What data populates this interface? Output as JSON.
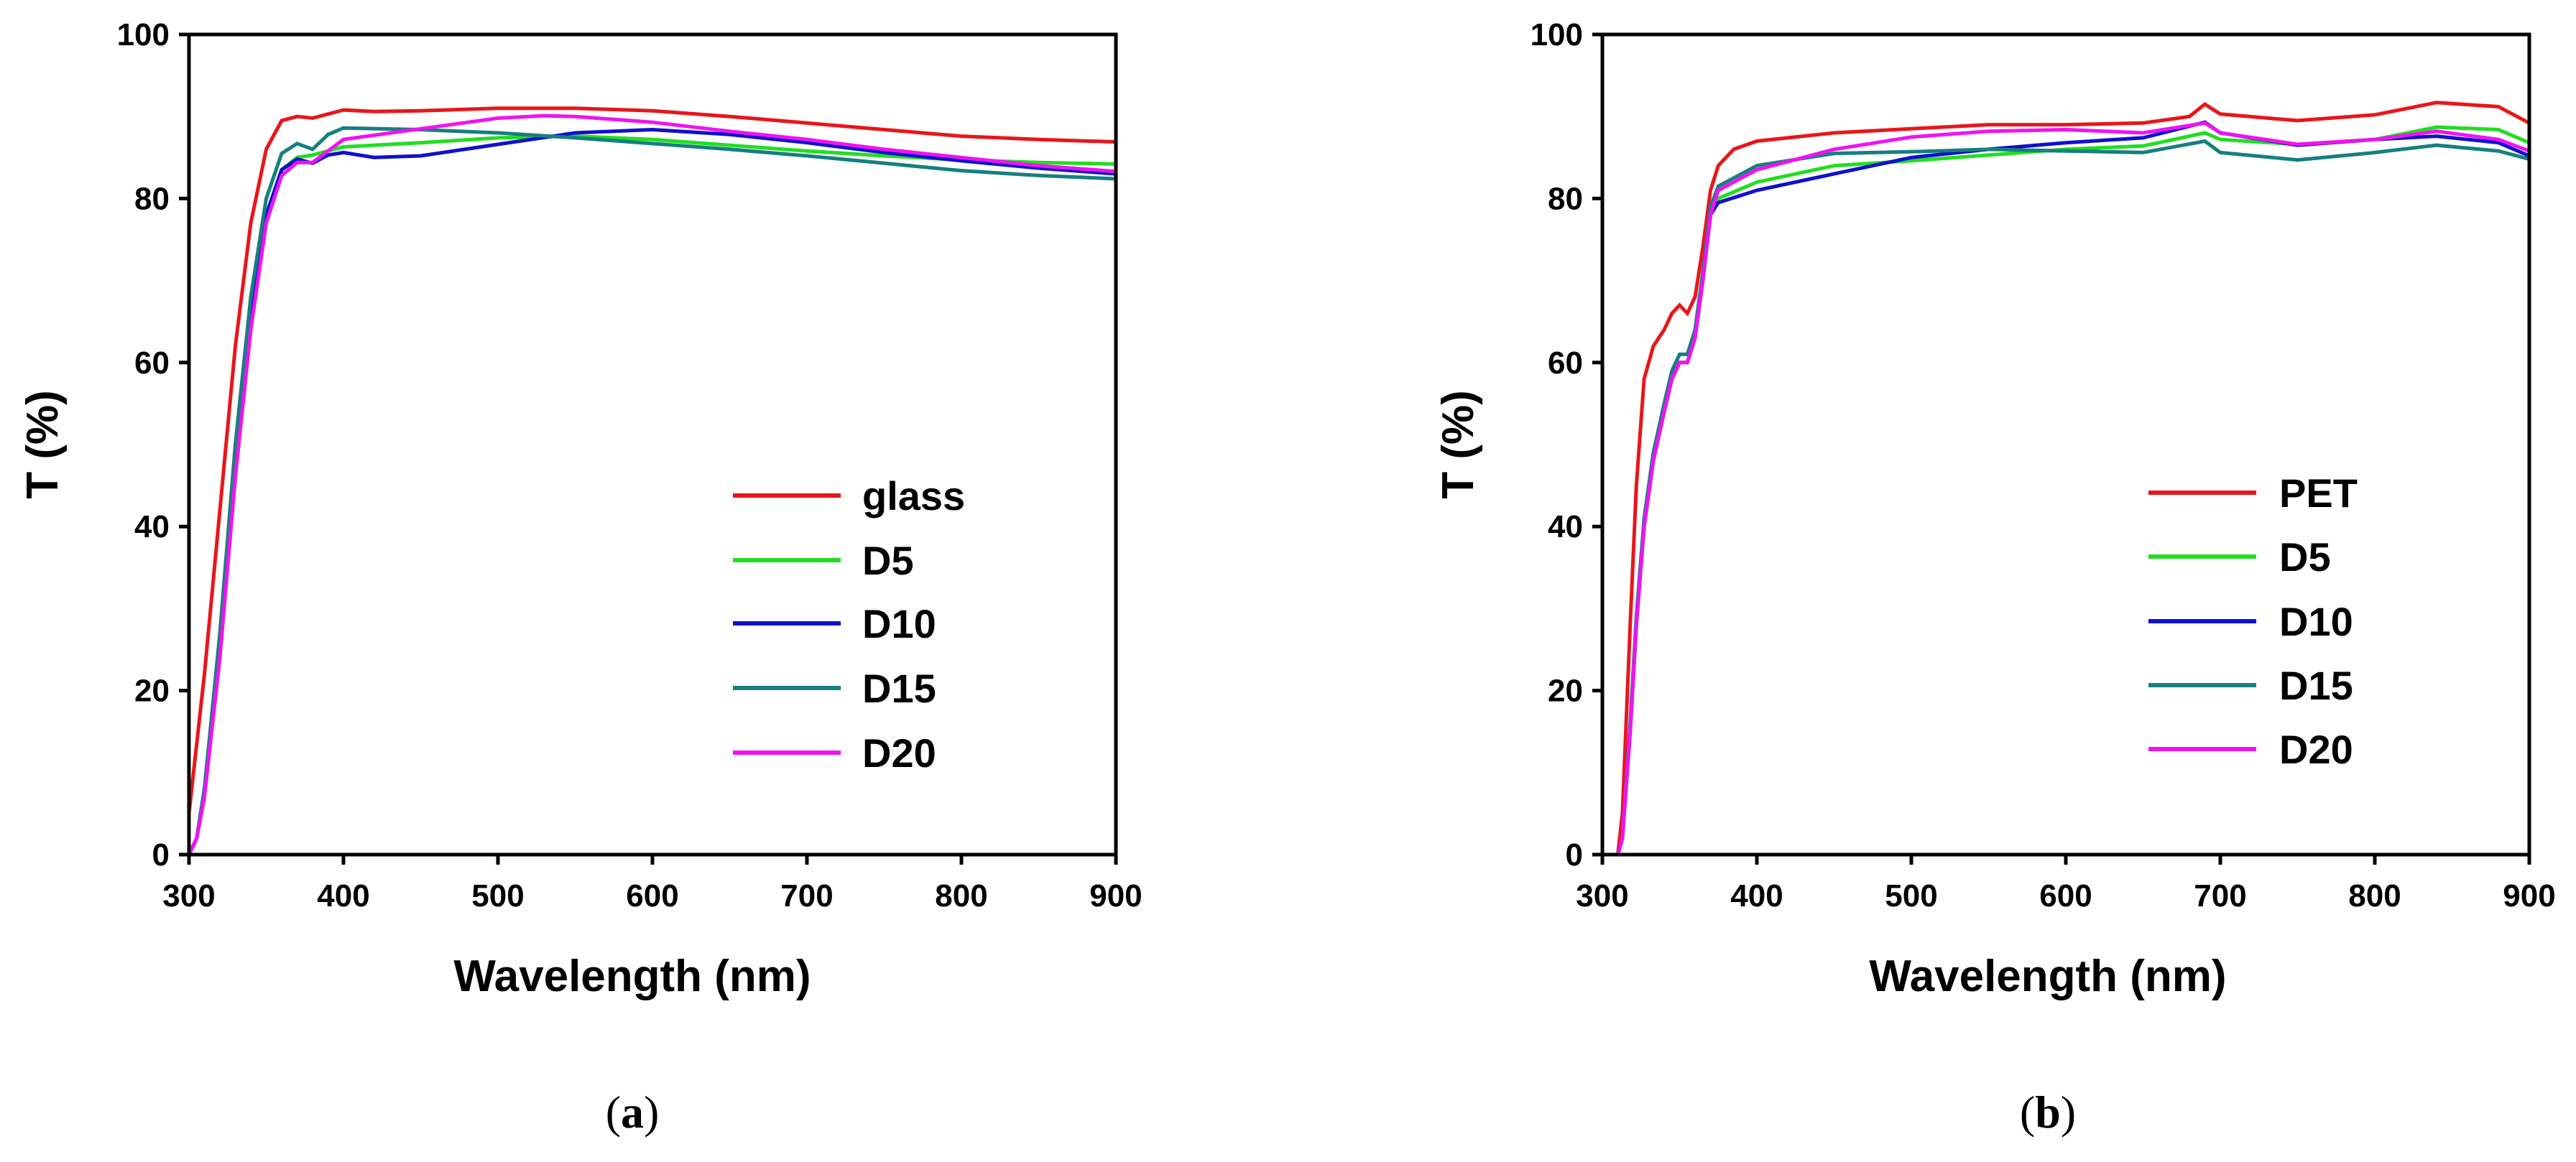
{
  "chart_data": [
    {
      "type": "line",
      "panel_label": "a",
      "xlabel": "Wavelength (nm)",
      "ylabel": "T (%)",
      "xlim": [
        300,
        900
      ],
      "ylim": [
        0,
        100
      ],
      "x_ticks": [
        300,
        400,
        500,
        600,
        700,
        800,
        900
      ],
      "y_ticks": [
        0,
        20,
        40,
        60,
        80,
        100
      ],
      "legend_position": "lower-right",
      "series": [
        {
          "name": "glass",
          "color": "#e8161b",
          "points": [
            [
              300,
              5
            ],
            [
              310,
              22
            ],
            [
              320,
              42
            ],
            [
              330,
              62
            ],
            [
              340,
              77
            ],
            [
              350,
              86
            ],
            [
              360,
              89.5
            ],
            [
              370,
              90
            ],
            [
              380,
              89.8
            ],
            [
              390,
              90.3
            ],
            [
              400,
              90.8
            ],
            [
              420,
              90.6
            ],
            [
              450,
              90.7
            ],
            [
              500,
              91
            ],
            [
              550,
              91
            ],
            [
              600,
              90.7
            ],
            [
              650,
              90
            ],
            [
              700,
              89.2
            ],
            [
              750,
              88.4
            ],
            [
              800,
              87.6
            ],
            [
              850,
              87.2
            ],
            [
              900,
              86.9
            ]
          ]
        },
        {
          "name": "D5",
          "color": "#22dd22",
          "points": [
            [
              300,
              0
            ],
            [
              305,
              2
            ],
            [
              310,
              8
            ],
            [
              320,
              26
            ],
            [
              330,
              48
            ],
            [
              340,
              66
            ],
            [
              350,
              78
            ],
            [
              360,
              83.5
            ],
            [
              370,
              85
            ],
            [
              380,
              85.3
            ],
            [
              390,
              85.8
            ],
            [
              400,
              86.3
            ],
            [
              450,
              86.8
            ],
            [
              500,
              87.4
            ],
            [
              550,
              87.6
            ],
            [
              600,
              87.2
            ],
            [
              650,
              86.5
            ],
            [
              700,
              85.8
            ],
            [
              750,
              85.2
            ],
            [
              800,
              84.7
            ],
            [
              850,
              84.4
            ],
            [
              900,
              84.2
            ]
          ]
        },
        {
          "name": "D10",
          "color": "#1010cc",
          "points": [
            [
              300,
              0
            ],
            [
              305,
              2
            ],
            [
              310,
              8
            ],
            [
              320,
              26
            ],
            [
              330,
              48
            ],
            [
              340,
              66
            ],
            [
              350,
              78
            ],
            [
              360,
              83.5
            ],
            [
              370,
              84.8
            ],
            [
              380,
              84.3
            ],
            [
              390,
              85.3
            ],
            [
              400,
              85.6
            ],
            [
              420,
              85
            ],
            [
              450,
              85.2
            ],
            [
              500,
              86.6
            ],
            [
              550,
              88
            ],
            [
              600,
              88.4
            ],
            [
              650,
              87.8
            ],
            [
              700,
              86.8
            ],
            [
              750,
              85.6
            ],
            [
              800,
              84.6
            ],
            [
              850,
              83.7
            ],
            [
              900,
              83
            ]
          ]
        },
        {
          "name": "D15",
          "color": "#167f7f",
          "points": [
            [
              300,
              0
            ],
            [
              305,
              2
            ],
            [
              310,
              8
            ],
            [
              320,
              27
            ],
            [
              330,
              50
            ],
            [
              340,
              68
            ],
            [
              350,
              80
            ],
            [
              360,
              85.5
            ],
            [
              370,
              86.7
            ],
            [
              380,
              86
            ],
            [
              390,
              87.8
            ],
            [
              400,
              88.6
            ],
            [
              450,
              88.4
            ],
            [
              500,
              88
            ],
            [
              550,
              87.4
            ],
            [
              600,
              86.7
            ],
            [
              650,
              86
            ],
            [
              700,
              85.2
            ],
            [
              750,
              84.3
            ],
            [
              800,
              83.4
            ],
            [
              850,
              82.8
            ],
            [
              900,
              82.4
            ]
          ]
        },
        {
          "name": "D20",
          "color": "#f013f0",
          "points": [
            [
              300,
              0
            ],
            [
              305,
              2
            ],
            [
              310,
              7
            ],
            [
              320,
              24
            ],
            [
              330,
              46
            ],
            [
              340,
              64
            ],
            [
              350,
              77
            ],
            [
              360,
              82.8
            ],
            [
              370,
              84.4
            ],
            [
              380,
              84.4
            ],
            [
              390,
              85.8
            ],
            [
              400,
              87.2
            ],
            [
              450,
              88.5
            ],
            [
              500,
              89.8
            ],
            [
              530,
              90.1
            ],
            [
              550,
              90
            ],
            [
              600,
              89.3
            ],
            [
              650,
              88.2
            ],
            [
              700,
              87.2
            ],
            [
              750,
              86
            ],
            [
              800,
              85
            ],
            [
              850,
              84
            ],
            [
              900,
              83.3
            ]
          ]
        }
      ]
    },
    {
      "type": "line",
      "panel_label": "b",
      "xlabel": "Wavelength (nm)",
      "ylabel": "T (%)",
      "xlim": [
        300,
        900
      ],
      "ylim": [
        0,
        100
      ],
      "x_ticks": [
        300,
        400,
        500,
        600,
        700,
        800,
        900
      ],
      "y_ticks": [
        0,
        20,
        40,
        60,
        80,
        100
      ],
      "legend_position": "lower-right",
      "series": [
        {
          "name": "PET",
          "color": "#e8161b",
          "points": [
            [
              310,
              0
            ],
            [
              313,
              5
            ],
            [
              318,
              28
            ],
            [
              322,
              45
            ],
            [
              327,
              58
            ],
            [
              333,
              62
            ],
            [
              340,
              64
            ],
            [
              345,
              66
            ],
            [
              350,
              67
            ],
            [
              355,
              66
            ],
            [
              360,
              68
            ],
            [
              365,
              74
            ],
            [
              370,
              81
            ],
            [
              375,
              84
            ],
            [
              385,
              86
            ],
            [
              400,
              87
            ],
            [
              450,
              88
            ],
            [
              500,
              88.5
            ],
            [
              550,
              89
            ],
            [
              600,
              89
            ],
            [
              650,
              89.2
            ],
            [
              680,
              90
            ],
            [
              690,
              91.5
            ],
            [
              700,
              90.3
            ],
            [
              750,
              89.5
            ],
            [
              800,
              90.2
            ],
            [
              840,
              91.7
            ],
            [
              880,
              91.2
            ],
            [
              900,
              89.2
            ]
          ]
        },
        {
          "name": "D5",
          "color": "#22dd22",
          "points": [
            [
              310,
              0
            ],
            [
              313,
              2
            ],
            [
              318,
              15
            ],
            [
              322,
              28
            ],
            [
              327,
              40
            ],
            [
              333,
              48
            ],
            [
              340,
              54
            ],
            [
              345,
              58
            ],
            [
              350,
              60
            ],
            [
              355,
              60
            ],
            [
              360,
              63
            ],
            [
              365,
              70
            ],
            [
              370,
              78
            ],
            [
              375,
              80
            ],
            [
              400,
              82
            ],
            [
              450,
              84
            ],
            [
              500,
              84.6
            ],
            [
              550,
              85.3
            ],
            [
              600,
              86
            ],
            [
              650,
              86.4
            ],
            [
              690,
              88
            ],
            [
              700,
              87.2
            ],
            [
              750,
              86.6
            ],
            [
              800,
              87.2
            ],
            [
              840,
              88.7
            ],
            [
              880,
              88.4
            ],
            [
              900,
              86.8
            ]
          ]
        },
        {
          "name": "D10",
          "color": "#1010cc",
          "points": [
            [
              310,
              0
            ],
            [
              313,
              2
            ],
            [
              318,
              15
            ],
            [
              322,
              28
            ],
            [
              327,
              40
            ],
            [
              333,
              48
            ],
            [
              340,
              54
            ],
            [
              345,
              58
            ],
            [
              350,
              60
            ],
            [
              355,
              60
            ],
            [
              360,
              63
            ],
            [
              365,
              70
            ],
            [
              370,
              78
            ],
            [
              375,
              79.5
            ],
            [
              400,
              81
            ],
            [
              450,
              83
            ],
            [
              500,
              85
            ],
            [
              550,
              86
            ],
            [
              600,
              86.8
            ],
            [
              650,
              87.4
            ],
            [
              690,
              89.3
            ],
            [
              700,
              88
            ],
            [
              750,
              86.5
            ],
            [
              800,
              87.2
            ],
            [
              840,
              87.6
            ],
            [
              880,
              86.8
            ],
            [
              900,
              85.2
            ]
          ]
        },
        {
          "name": "D15",
          "color": "#167f7f",
          "points": [
            [
              310,
              0
            ],
            [
              313,
              2
            ],
            [
              318,
              16
            ],
            [
              322,
              29
            ],
            [
              327,
              41
            ],
            [
              333,
              49
            ],
            [
              340,
              55
            ],
            [
              345,
              59
            ],
            [
              350,
              61
            ],
            [
              355,
              61
            ],
            [
              360,
              64
            ],
            [
              365,
              71
            ],
            [
              370,
              79
            ],
            [
              375,
              81.5
            ],
            [
              400,
              84
            ],
            [
              450,
              85.5
            ],
            [
              500,
              85.7
            ],
            [
              550,
              86
            ],
            [
              600,
              85.8
            ],
            [
              650,
              85.6
            ],
            [
              690,
              87
            ],
            [
              700,
              85.6
            ],
            [
              750,
              84.7
            ],
            [
              800,
              85.6
            ],
            [
              840,
              86.5
            ],
            [
              880,
              85.8
            ],
            [
              900,
              84.8
            ]
          ]
        },
        {
          "name": "D20",
          "color": "#f013f0",
          "points": [
            [
              310,
              0
            ],
            [
              313,
              2
            ],
            [
              318,
              15
            ],
            [
              322,
              28
            ],
            [
              327,
              40
            ],
            [
              333,
              48
            ],
            [
              340,
              54
            ],
            [
              345,
              58
            ],
            [
              350,
              60
            ],
            [
              355,
              60
            ],
            [
              360,
              63
            ],
            [
              365,
              70
            ],
            [
              370,
              78
            ],
            [
              375,
              81
            ],
            [
              400,
              83.5
            ],
            [
              450,
              86
            ],
            [
              500,
              87.5
            ],
            [
              550,
              88.2
            ],
            [
              600,
              88.4
            ],
            [
              650,
              88
            ],
            [
              690,
              89.2
            ],
            [
              700,
              88
            ],
            [
              750,
              86.6
            ],
            [
              800,
              87.2
            ],
            [
              840,
              88.2
            ],
            [
              880,
              87.2
            ],
            [
              900,
              85.8
            ]
          ]
        }
      ]
    }
  ]
}
